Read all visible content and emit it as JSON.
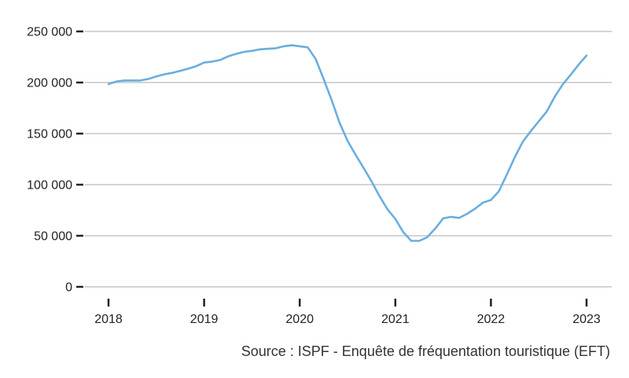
{
  "chart_data": {
    "type": "line",
    "title": "",
    "xlabel": "",
    "ylabel": "",
    "ylim": [
      0,
      250000
    ],
    "xlim": [
      2018,
      2023
    ],
    "yticks": [
      0,
      50000,
      100000,
      150000,
      200000,
      250000
    ],
    "ytick_labels": [
      "0",
      "50 000",
      "100 000",
      "150 000",
      "200 000",
      "250 000"
    ],
    "xticks": [
      2018,
      2019,
      2020,
      2021,
      2022,
      2023
    ],
    "xtick_labels": [
      "2018",
      "2019",
      "2020",
      "2021",
      "2022",
      "2023"
    ],
    "grid": "horizontal",
    "color": "#6aaee0",
    "series": [
      {
        "x": [
          2018.0,
          2018.083,
          2018.167,
          2018.25,
          2018.333,
          2018.417,
          2018.5,
          2018.583,
          2018.667,
          2018.75,
          2018.833,
          2018.917,
          2019.0,
          2019.083,
          2019.167,
          2019.25,
          2019.333,
          2019.417,
          2019.5,
          2019.583,
          2019.667,
          2019.75,
          2019.833,
          2019.917,
          2020.0,
          2020.083,
          2020.167,
          2020.25,
          2020.333,
          2020.417,
          2020.5,
          2020.583,
          2020.667,
          2020.75,
          2020.833,
          2020.917,
          2021.0,
          2021.083,
          2021.167,
          2021.25,
          2021.333,
          2021.417,
          2021.5,
          2021.583,
          2021.667,
          2021.75,
          2021.833,
          2021.917,
          2022.0,
          2022.083,
          2022.167,
          2022.25,
          2022.333,
          2022.417,
          2022.5,
          2022.583,
          2022.667,
          2022.75,
          2022.833,
          2022.917,
          2023.0
        ],
        "values": [
          198500,
          201000,
          202000,
          202000,
          202000,
          203500,
          206000,
          208000,
          209500,
          211500,
          213500,
          216000,
          219500,
          220500,
          222000,
          225500,
          228000,
          230000,
          231000,
          232500,
          233000,
          233500,
          235500,
          236500,
          235500,
          234500,
          223000,
          203500,
          183000,
          160500,
          143000,
          129500,
          116500,
          103500,
          89000,
          76000,
          66500,
          53500,
          45000,
          45000,
          48500,
          57000,
          67000,
          68500,
          67500,
          71500,
          76500,
          82500,
          85000,
          93500,
          110000,
          127000,
          142000,
          152500,
          162000,
          171500,
          186000,
          198000,
          207500,
          217500,
          226500
        ]
      }
    ]
  },
  "source": "Source : ISPF - Enquête de fréquentation touristique (EFT)"
}
